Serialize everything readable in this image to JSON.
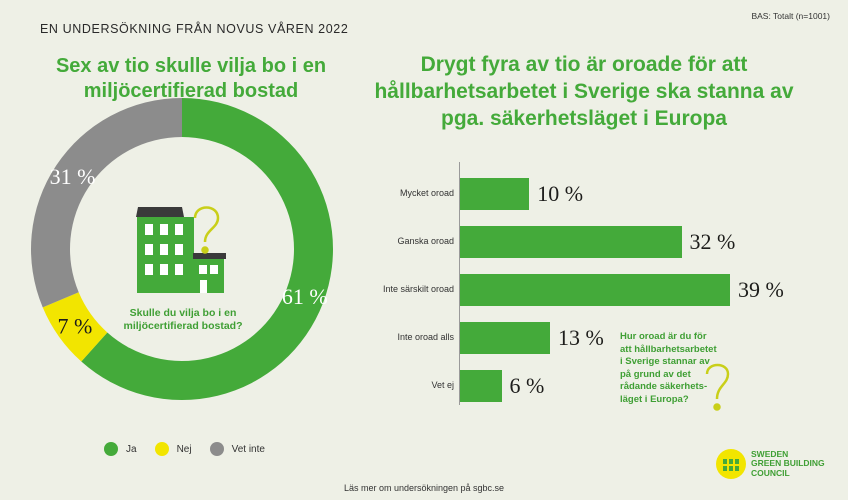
{
  "header": {
    "survey": "EN UNDERSÖKNING FRÅN NOVUS VÅREN 2022",
    "base": "BAS: Totalt (n=1001)"
  },
  "colors": {
    "green": "#44aa3a",
    "yellow": "#f2e500",
    "gray": "#8c8c8c",
    "ink": "#1d1d1b"
  },
  "left_title": "Sex av tio skulle vilja bo i en miljöcertifierad bostad",
  "right_title": "Drygt fyra av tio är oroade för att hållbarhetsarbetet i Sverige ska stanna av pga. säkerhetsläget i Europa",
  "donut_question": "Skulle du vilja bo i en miljöcertifierad bostad?",
  "bar_question": "Hur oroad är du för att hållbarhetsarbetet i Sverige stannar av på grund av det rådande säkerhets-läget i Europa?",
  "footer": "Läs mer om undersökningen på sgbc.se",
  "logo": {
    "line1": "SWEDEN",
    "line2": "GREEN BUILDING",
    "line3": "COUNCIL"
  },
  "icons": {
    "house": "apartment-building-icon",
    "question": "question-mark-icon",
    "logo": "sgbc-logo-icon"
  },
  "chart_data": [
    {
      "type": "pie",
      "categories": [
        "Ja",
        "Nej",
        "Vet inte"
      ],
      "values": [
        61,
        7,
        31
      ],
      "labels": [
        "61 %",
        "7 %",
        "31 %"
      ],
      "colors": [
        "#44aa3a",
        "#f2e500",
        "#8c8c8c"
      ],
      "legend": "bottom"
    },
    {
      "type": "bar",
      "orientation": "horizontal",
      "categories": [
        "Mycket oroad",
        "Ganska oroad",
        "Inte särskilt oroad",
        "Inte oroad alls",
        "Vet ej"
      ],
      "values": [
        10,
        32,
        39,
        13,
        6
      ],
      "labels": [
        "10 %",
        "32 %",
        "39 %",
        "13 %",
        "6 %"
      ],
      "color": "#44aa3a"
    }
  ]
}
